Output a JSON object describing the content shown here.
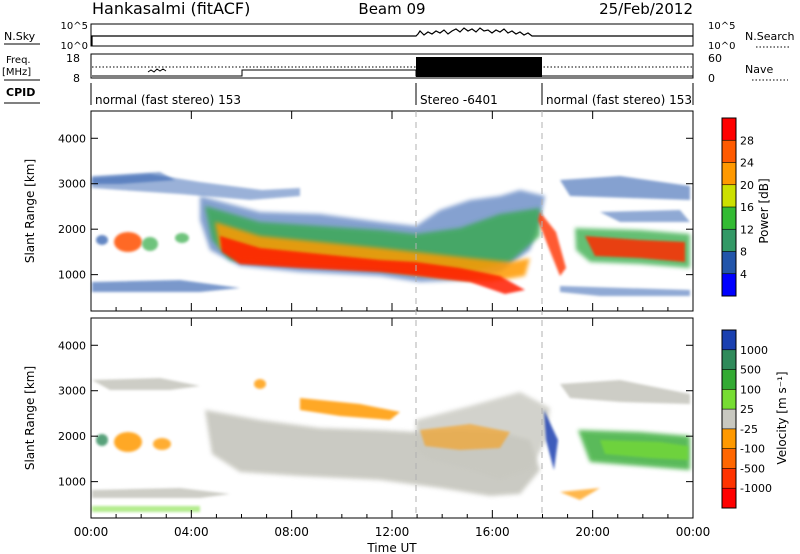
{
  "header": {
    "station": "Hankasalmi (fitACF)",
    "beam": "Beam 09",
    "date": "25/Feb/2012"
  },
  "params": {
    "nsky_label": "N.Sky",
    "nsky_top": "10^5",
    "nsky_bottom": "10^0",
    "nsearch_label": "N.Search",
    "nsearch_top": "10^5",
    "nsearch_bottom": "10^0",
    "freq_label_1": "Freq.",
    "freq_label_2": "[MHz]",
    "freq_top": "18",
    "freq_bottom": "8",
    "nave_label": "Nave",
    "nave_top": "60",
    "nave_bottom": "0",
    "cpid_label": "CPID",
    "cpid_segments": [
      {
        "label": "normal (fast stereo) 153",
        "start": 0,
        "end": 13
      },
      {
        "label": "Stereo -6401",
        "start": 13,
        "end": 18
      },
      {
        "label": "normal (fast stereo) 153",
        "start": 18,
        "end": 24
      }
    ]
  },
  "chart_data": [
    {
      "type": "heatmap",
      "name": "power",
      "ylabel": "Slant Range [km]",
      "ylim": [
        200,
        4600
      ],
      "yticks": [
        1000,
        2000,
        3000,
        4000
      ],
      "colorbar_label": "Power [dB]",
      "colorbar_ticks": [
        "28",
        "24",
        "20",
        "16",
        "12",
        "8",
        "4"
      ],
      "colorbar_colors": [
        "#ff0000",
        "#ff5a00",
        "#ff9900",
        "#cce000",
        "#33bb33",
        "#339966",
        "#2255aa",
        "#0000ff"
      ]
    },
    {
      "type": "heatmap",
      "name": "velocity",
      "ylabel": "Slant Range [km]",
      "ylim": [
        200,
        4600
      ],
      "yticks": [
        1000,
        2000,
        3000,
        4000
      ],
      "colorbar_label": "Velocity [m s⁻¹]",
      "colorbar_ticks": [
        "1000",
        "500",
        "100",
        "25",
        "-25",
        "-100",
        "-500",
        "-1000"
      ],
      "colorbar_colors": [
        "#1a40b0",
        "#2f8a5a",
        "#33aa33",
        "#77dd33",
        "#c8c8c0",
        "#ff9900",
        "#ff6600",
        "#ff3300",
        "#ff0000"
      ]
    }
  ],
  "xaxis": {
    "label": "Time UT",
    "ticks": [
      "00:00",
      "04:00",
      "08:00",
      "12:00",
      "16:00",
      "20:00",
      "00:00"
    ],
    "xlim": [
      0,
      24
    ]
  },
  "colors": {
    "low_echo": "#2255aa",
    "main_echo": "#ff4000",
    "ground_scatter": "#c8c8c0",
    "divider": "#b0b0b0"
  }
}
